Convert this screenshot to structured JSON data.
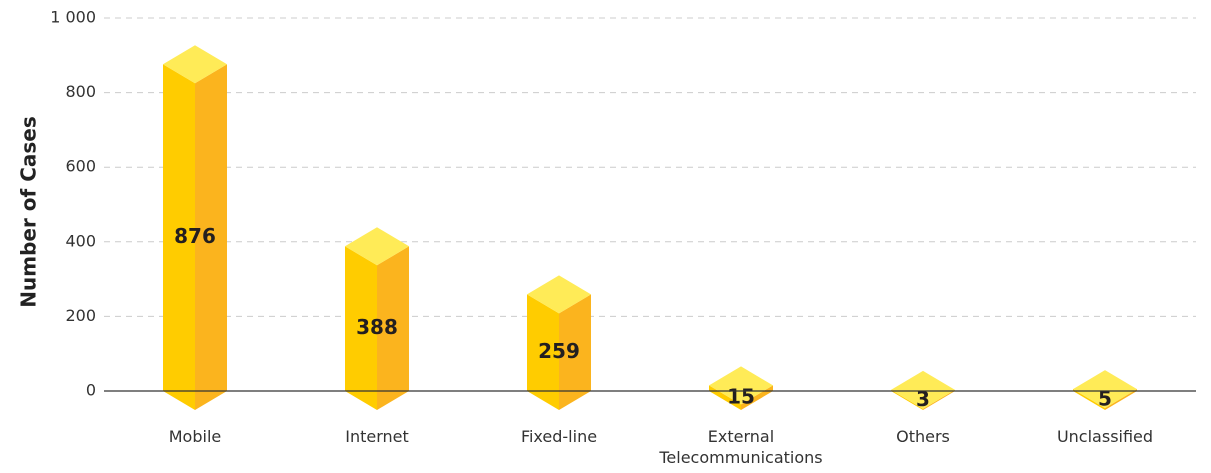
{
  "chart_data": {
    "type": "bar3d",
    "y_label": "Number of Cases",
    "categories": [
      "Mobile",
      "Internet",
      "Fixed-line",
      "External Telecommunications",
      "Others",
      "Unclassified"
    ],
    "values": [
      876,
      388,
      259,
      15,
      3,
      5
    ],
    "colors": {
      "front": "#FFCC00",
      "side": "#FBB41E",
      "top": "#FFEB57"
    },
    "ylim": [
      0,
      1000
    ],
    "yticks": [
      0,
      200,
      400,
      600,
      800,
      {
        "value": 1000,
        "label": "1 000"
      }
    ],
    "grid": true
  }
}
